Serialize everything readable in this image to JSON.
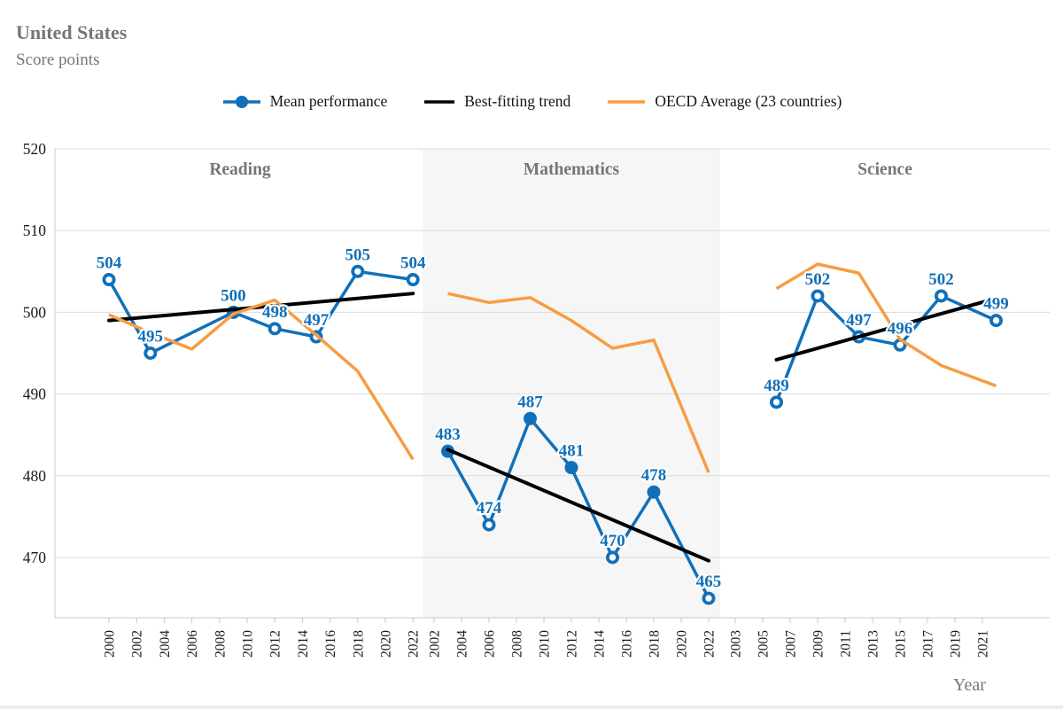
{
  "colors": {
    "blue": "#1170B9",
    "orange": "#F89C42",
    "black": "#000000",
    "panel_shade": "#F6F6F6",
    "grid": "#DBDBDB",
    "axis": "#C8C8C8",
    "muted_text": "#767676",
    "tick_text": "#1A1A1A"
  },
  "chart_data": {
    "type": "line",
    "title": "United States",
    "subtitle": "Score points",
    "xlabel": "Year",
    "ylim": [
      463,
      520
    ],
    "y_ticks": [
      470,
      480,
      490,
      500,
      510,
      520
    ],
    "grid": true,
    "legend_position": "top-center",
    "legend": [
      "Mean performance",
      "Best-fitting trend",
      "OECD Average (23 countries)"
    ],
    "panels": [
      {
        "subject": "Reading",
        "shaded": false,
        "axis_years": [
          2000,
          2002,
          2004,
          2006,
          2008,
          2010,
          2012,
          2014,
          2016,
          2018,
          2020,
          2022
        ],
        "series": {
          "mean_performance": {
            "years": [
              2000,
              2003,
              2009,
              2012,
              2015,
              2018,
              2022
            ],
            "values": [
              504,
              495,
              500,
              498,
              497,
              505,
              504
            ],
            "open_marker": [
              true,
              true,
              false,
              true,
              true,
              true,
              true
            ]
          },
          "oecd_average": {
            "years": [
              2000,
              2003,
              2006,
              2009,
              2012,
              2015,
              2018,
              2022
            ],
            "values": [
              499.7,
              497.5,
              495.5,
              499.8,
              501.5,
              497.2,
              492.8,
              482.0
            ]
          },
          "best_fitting_trend": {
            "years": [
              2000,
              2022
            ],
            "values": [
              499.0,
              502.3
            ]
          }
        }
      },
      {
        "subject": "Mathematics",
        "shaded": true,
        "axis_years": [
          2002,
          2004,
          2006,
          2008,
          2010,
          2012,
          2014,
          2016,
          2018,
          2020,
          2022
        ],
        "series": {
          "mean_performance": {
            "years": [
              2003,
              2006,
              2009,
              2012,
              2015,
              2018,
              2022
            ],
            "values": [
              483,
              474,
              487,
              481,
              470,
              478,
              465
            ],
            "open_marker": [
              false,
              true,
              false,
              false,
              true,
              false,
              true
            ]
          },
          "oecd_average": {
            "years": [
              2003,
              2006,
              2009,
              2012,
              2015,
              2018,
              2022
            ],
            "values": [
              502.3,
              501.2,
              501.8,
              499.0,
              495.6,
              496.6,
              480.4
            ]
          },
          "best_fitting_trend": {
            "years": [
              2003,
              2022
            ],
            "values": [
              483.2,
              469.6
            ]
          }
        }
      },
      {
        "subject": "Science",
        "shaded": false,
        "axis_years": [
          2003,
          2005,
          2007,
          2009,
          2011,
          2013,
          2015,
          2017,
          2019,
          2021
        ],
        "series": {
          "mean_performance": {
            "years": [
              2006,
              2009,
              2012,
              2015,
              2018,
              2022
            ],
            "values": [
              489,
              502,
              497,
              496,
              502,
              499
            ],
            "open_marker": [
              true,
              true,
              true,
              true,
              true,
              true
            ]
          },
          "oecd_average": {
            "years": [
              2006,
              2009,
              2012,
              2015,
              2018,
              2022
            ],
            "values": [
              502.9,
              505.9,
              504.8,
              496.7,
              493.5,
              491.0
            ]
          },
          "best_fitting_trend": {
            "years": [
              2006,
              2022
            ],
            "values": [
              494.2,
              501.7
            ]
          }
        }
      }
    ]
  }
}
